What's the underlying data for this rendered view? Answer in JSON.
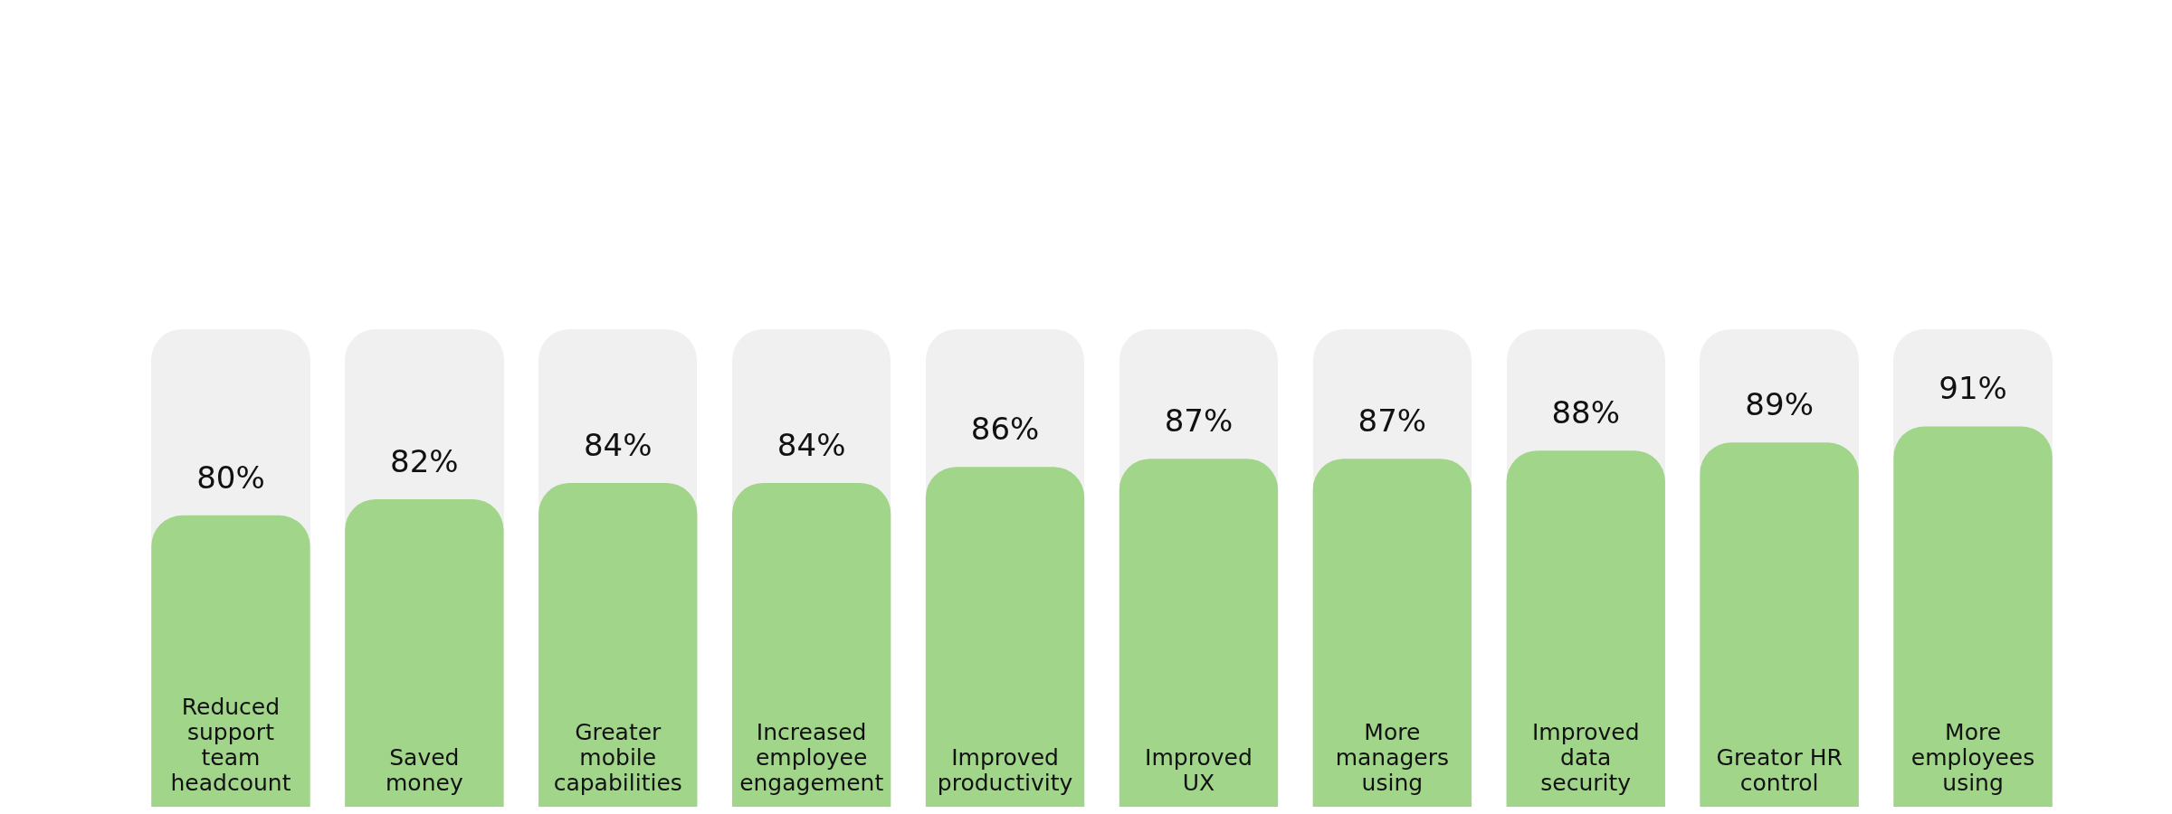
{
  "chart_data": {
    "type": "bar",
    "categories": [
      "Reduced support team headcount",
      "Saved money",
      "Greater mobile capabilities",
      "Increased employee engagement",
      "Improved productivity",
      "Improved UX",
      "More managers using",
      "Improved data security",
      "Greator HR control",
      "More employees using"
    ],
    "values": [
      80,
      82,
      84,
      84,
      86,
      87,
      87,
      88,
      89,
      91
    ],
    "value_labels": [
      "80%",
      "82%",
      "84%",
      "84%",
      "86%",
      "87%",
      "87%",
      "88%",
      "89%",
      "91%"
    ],
    "color": "#a0d58a",
    "ylim": [
      44,
      103
    ]
  }
}
